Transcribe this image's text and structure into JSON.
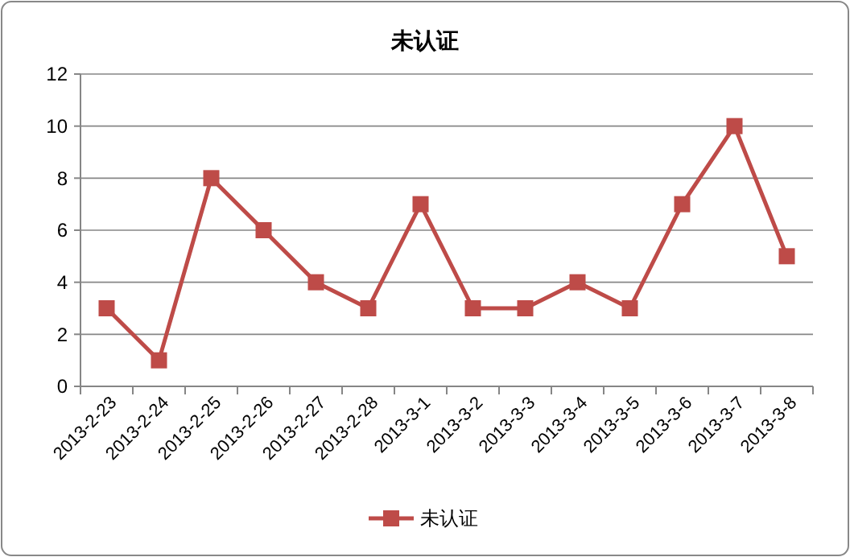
{
  "chart_data": {
    "type": "line",
    "title": "未认证",
    "categories": [
      "2013-2-23",
      "2013-2-24",
      "2013-2-25",
      "2013-2-26",
      "2013-2-27",
      "2013-2-28",
      "2013-3-1",
      "2013-3-2",
      "2013-3-3",
      "2013-3-4",
      "2013-3-5",
      "2013-3-6",
      "2013-3-7",
      "2013-3-8"
    ],
    "series": [
      {
        "name": "未认证",
        "color": "#be4b48",
        "values": [
          3,
          1,
          8,
          6,
          4,
          3,
          7,
          3,
          3,
          4,
          3,
          7,
          10,
          5
        ]
      }
    ],
    "ylim": [
      0,
      12
    ],
    "yticks": [
      0,
      2,
      4,
      6,
      8,
      10,
      12
    ],
    "grid": "y",
    "legend": "bottom",
    "marker": "square",
    "line_style": "solid"
  }
}
